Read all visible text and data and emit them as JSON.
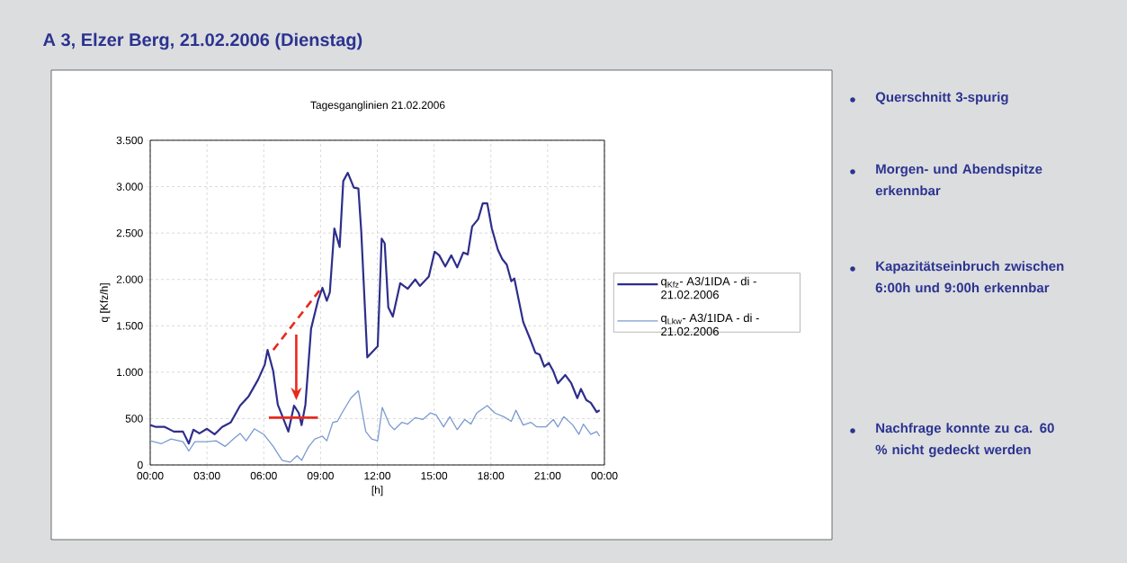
{
  "chart_data": {
    "type": "line",
    "title": "A 3, Elzer Berg, 21.02.2006 (Dienstag)",
    "subtitle": "Tagesganglinien 21.02.2006",
    "xlabel": "[h]",
    "ylabel": "q [Kfz/h]",
    "annotations": [
      "Querschnitt 3-spurig",
      "Morgen- und Abendspitze erkennbar",
      "Kapazitätseinbruch zwischen 6:00h und 9:00h erkennbar",
      "Nachfrage konnte zu ca. 60 % nicht gedeckt werden"
    ],
    "xlim": [
      0,
      24
    ],
    "ylim": [
      0,
      3500
    ],
    "xticks": [
      {
        "value": 0,
        "label": "00:00"
      },
      {
        "value": 3,
        "label": "03:00"
      },
      {
        "value": 6,
        "label": "06:00"
      },
      {
        "value": 9,
        "label": "09:00"
      },
      {
        "value": 12,
        "label": "12:00"
      },
      {
        "value": 15,
        "label": "15:00"
      },
      {
        "value": 18,
        "label": "18:00"
      },
      {
        "value": 21,
        "label": "21:00"
      },
      {
        "value": 24,
        "label": "00:00"
      }
    ],
    "yticks": [
      0,
      500,
      {
        "value": 1000,
        "label": "1.000"
      },
      {
        "value": 1500,
        "label": "1.500"
      },
      {
        "value": 2000,
        "label": "2.000"
      },
      {
        "value": 2500,
        "label": "2.500"
      },
      {
        "value": 3000,
        "label": "3.000"
      },
      {
        "value": 3500,
        "label": "3.500"
      }
    ],
    "grid": true,
    "legend": "right",
    "line_style": "solid",
    "series": [
      {
        "name": "q$_{Kfz}$- A3/1IDA - di - 21.02.2006",
        "color": "#2e2e8c",
        "x": [
          0,
          0.3,
          0.77,
          1.25,
          1.73,
          2.04,
          2.28,
          2.6,
          3.0,
          3.4,
          3.8,
          4.26,
          4.75,
          5.2,
          5.7,
          6.05,
          6.2,
          6.5,
          6.74,
          7.05,
          7.3,
          7.6,
          7.85,
          8.0,
          8.2,
          8.5,
          8.86,
          9.1,
          9.33,
          9.49,
          9.73,
          10.01,
          10.2,
          10.44,
          10.76,
          11.0,
          11.15,
          11.47,
          12.02,
          12.23,
          12.39,
          12.58,
          12.82,
          13.21,
          13.61,
          14.0,
          14.25,
          14.72,
          15.03,
          15.27,
          15.59,
          15.91,
          16.22,
          16.54,
          16.78,
          17.01,
          17.33,
          17.57,
          17.81,
          18.05,
          18.37,
          18.6,
          18.84,
          19.08,
          19.24,
          19.71,
          20.11,
          20.35,
          20.58,
          20.82,
          21.06,
          21.3,
          21.54,
          21.93,
          22.25,
          22.57,
          22.76,
          23.04,
          23.28,
          23.59,
          23.75
        ],
        "values": [
          430,
          410,
          410,
          360,
          360,
          230,
          380,
          340,
          390,
          330,
          410,
          460,
          640,
          740,
          920,
          1080,
          1240,
          1010,
          650,
          490,
          360,
          640,
          560,
          430,
          650,
          1470,
          1770,
          1910,
          1770,
          1860,
          2550,
          2350,
          3060,
          3150,
          2990,
          2980,
          2520,
          1160,
          1280,
          2440,
          2390,
          1700,
          1600,
          1960,
          1900,
          2000,
          1930,
          2030,
          2300,
          2260,
          2140,
          2260,
          2130,
          2290,
          2270,
          2570,
          2650,
          2820,
          2820,
          2550,
          2320,
          2220,
          2160,
          1980,
          2010,
          1540,
          1340,
          1210,
          1190,
          1060,
          1100,
          1010,
          880,
          970,
          880,
          720,
          820,
          700,
          670,
          570,
          590
        ]
      },
      {
        "name": "q$_{Lkw}$- A3/1IDA - di - 21.02.2006",
        "color": "#7b9ad0",
        "x": [
          0,
          0.6,
          1.1,
          1.73,
          2.04,
          2.36,
          3.0,
          3.48,
          3.96,
          4.4,
          4.75,
          5.07,
          5.5,
          6.0,
          6.5,
          6.97,
          7.4,
          7.76,
          8.0,
          8.2,
          8.38,
          8.7,
          9.1,
          9.33,
          9.65,
          9.89,
          10.13,
          10.6,
          11.0,
          11.39,
          11.7,
          12.02,
          12.26,
          12.66,
          12.9,
          13.3,
          13.61,
          14.0,
          14.4,
          14.8,
          15.11,
          15.5,
          15.83,
          16.22,
          16.62,
          16.94,
          17.25,
          17.81,
          18.21,
          18.68,
          19.08,
          19.32,
          19.71,
          20.11,
          20.43,
          20.9,
          21.3,
          21.54,
          21.85,
          22.33,
          22.65,
          22.89,
          23.28,
          23.59,
          23.75
        ],
        "values": [
          260,
          230,
          280,
          250,
          150,
          250,
          250,
          260,
          200,
          280,
          340,
          260,
          390,
          330,
          200,
          50,
          30,
          100,
          50,
          130,
          200,
          280,
          310,
          260,
          460,
          470,
          560,
          720,
          800,
          360,
          280,
          260,
          620,
          430,
          380,
          460,
          440,
          510,
          490,
          560,
          540,
          410,
          520,
          380,
          490,
          440,
          560,
          640,
          560,
          520,
          470,
          590,
          430,
          460,
          410,
          410,
          490,
          410,
          520,
          430,
          330,
          440,
          330,
          360,
          310
        ]
      },
      {
        "color": "#e8291c",
        "line_style": "dashed",
        "x": [
          6.5,
          8.94
        ],
        "values": [
          1240,
          1880
        ]
      },
      {
        "color": "#e8291c",
        "x": [
          6.27,
          8.86
        ],
        "values": [
          510,
          510
        ]
      }
    ]
  }
}
